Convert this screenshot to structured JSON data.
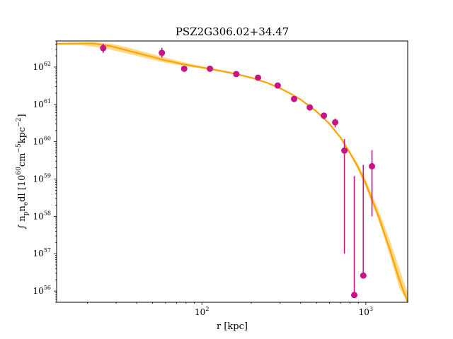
{
  "chart_data": {
    "type": "scatter",
    "title": "PSZ2G306.02+34.47",
    "xlabel": "r [kpc]",
    "ylabel": "∫ n_p n_e dl [10^60 cm^-5 kpc^-2]",
    "xscale": "log",
    "yscale": "log",
    "xlim": [
      13.0,
      1800.0
    ],
    "ylim": [
      5e+55,
      5e+62
    ],
    "grid": false,
    "legend": "none",
    "x_tick_labels": [
      {
        "base": "10",
        "exp": "2",
        "value": 100
      },
      {
        "base": "10",
        "exp": "3",
        "value": 1000
      }
    ],
    "y_tick_labels": [
      {
        "base": "10",
        "exp": "56",
        "value": 1e+56
      },
      {
        "base": "10",
        "exp": "57",
        "value": 1e+57
      },
      {
        "base": "10",
        "exp": "58",
        "value": 1e+58
      },
      {
        "base": "10",
        "exp": "59",
        "value": 1e+59
      },
      {
        "base": "10",
        "exp": "60",
        "value": 1e+60
      },
      {
        "base": "10",
        "exp": "61",
        "value": 1e+61
      },
      {
        "base": "10",
        "exp": "62",
        "value": 1e+62
      }
    ],
    "points": [
      {
        "x": 25,
        "y": 3.2e+62,
        "yerr_low": 8e+61,
        "yerr_high": 1e+62
      },
      {
        "x": 57,
        "y": 2.4e+62,
        "yerr_low": 6e+61,
        "yerr_high": 9e+61
      },
      {
        "x": 78,
        "y": 9e+61,
        "yerr_low": 1.5e+61,
        "yerr_high": 1.8e+61
      },
      {
        "x": 112,
        "y": 9e+61,
        "yerr_low": 1e+61,
        "yerr_high": 1e+61
      },
      {
        "x": 162,
        "y": 6.5e+61,
        "yerr_low": 8e+60,
        "yerr_high": 8e+60
      },
      {
        "x": 220,
        "y": 5.2e+61,
        "yerr_low": 6e+60,
        "yerr_high": 6e+60
      },
      {
        "x": 290,
        "y": 3.2e+61,
        "yerr_low": 4e+60,
        "yerr_high": 4e+60
      },
      {
        "x": 365,
        "y": 1.4e+61,
        "yerr_low": 2e+60,
        "yerr_high": 2e+60
      },
      {
        "x": 455,
        "y": 8.3e+60,
        "yerr_low": 1.5e+60,
        "yerr_high": 1.5e+60
      },
      {
        "x": 555,
        "y": 5e+60,
        "yerr_low": 1e+60,
        "yerr_high": 1e+60
      },
      {
        "x": 650,
        "y": 3.3e+60,
        "yerr_low": 9e+59,
        "yerr_high": 9e+59
      },
      {
        "x": 740,
        "y": 5.8e+59,
        "yerr_low": 5.79e+59,
        "yerr_high": 6e+59
      },
      {
        "x": 850,
        "y": 7.8e+55,
        "yerr_low": 0,
        "yerr_high": 1.2e+59
      },
      {
        "x": 965,
        "y": 2.6e+56,
        "yerr_low": 0,
        "yerr_high": 2.4e+59
      },
      {
        "x": 1090,
        "y": 2.2e+59,
        "yerr_low": 2.1e+59,
        "yerr_high": 3.8e+59
      }
    ],
    "model_median": [
      [
        13,
        4.2e+62
      ],
      [
        18,
        4.3e+62
      ],
      [
        22,
        4.3e+62
      ],
      [
        28,
        3.6e+62
      ],
      [
        35,
        2.8e+62
      ],
      [
        45,
        2.1e+62
      ],
      [
        60,
        1.5e+62
      ],
      [
        80,
        1.15e+62
      ],
      [
        100,
        9.7e+61
      ],
      [
        130,
        7.9e+61
      ],
      [
        160,
        6.6e+61
      ],
      [
        200,
        5.2e+61
      ],
      [
        250,
        3.8e+61
      ],
      [
        300,
        2.7e+61
      ],
      [
        350,
        1.9e+61
      ],
      [
        400,
        1.35e+61
      ],
      [
        500,
        6.5e+60
      ],
      [
        600,
        3e+60
      ],
      [
        700,
        1.3e+60
      ],
      [
        800,
        5e+59
      ],
      [
        900,
        2e+59
      ],
      [
        1000,
        7.5e+58
      ],
      [
        1200,
        9.5e+57
      ],
      [
        1400,
        1.3e+57
      ],
      [
        1600,
        2e+56
      ],
      [
        1800,
        4.5e+55
      ]
    ],
    "model_low": [
      [
        13,
        4e+62
      ],
      [
        18,
        3.9e+62
      ],
      [
        22,
        3.5e+62
      ],
      [
        28,
        2.9e+62
      ],
      [
        35,
        2.3e+62
      ],
      [
        45,
        1.75e+62
      ],
      [
        60,
        1.3e+62
      ],
      [
        80,
        1.05e+62
      ],
      [
        100,
        9.1e+61
      ],
      [
        130,
        7.5e+61
      ],
      [
        160,
        6.3e+61
      ],
      [
        200,
        5e+61
      ],
      [
        250,
        3.6e+61
      ],
      [
        300,
        2.55e+61
      ],
      [
        350,
        1.8e+61
      ],
      [
        400,
        1.28e+61
      ],
      [
        500,
        6.1e+60
      ],
      [
        600,
        2.8e+60
      ],
      [
        700,
        1.2e+60
      ],
      [
        800,
        4.5e+59
      ],
      [
        900,
        1.7e+59
      ],
      [
        1000,
        6e+58
      ],
      [
        1200,
        7.5e+57
      ],
      [
        1400,
        9e+56
      ],
      [
        1600,
        1.2e+56
      ],
      [
        1800,
        2.5e+55
      ]
    ],
    "model_high": [
      [
        13,
        4.4e+62
      ],
      [
        18,
        4.5e+62
      ],
      [
        22,
        4.6e+62
      ],
      [
        28,
        4.2e+62
      ],
      [
        35,
        3.4e+62
      ],
      [
        45,
        2.5e+62
      ],
      [
        60,
        1.8e+62
      ],
      [
        80,
        1.3e+62
      ],
      [
        100,
        1.05e+62
      ],
      [
        130,
        8.4e+61
      ],
      [
        160,
        7e+61
      ],
      [
        200,
        5.5e+61
      ],
      [
        250,
        4e+61
      ],
      [
        300,
        2.85e+61
      ],
      [
        350,
        2e+61
      ],
      [
        400,
        1.42e+61
      ],
      [
        500,
        6.9e+60
      ],
      [
        600,
        3.2e+60
      ],
      [
        700,
        1.4e+60
      ],
      [
        800,
        5.6e+59
      ],
      [
        900,
        2.4e+59
      ],
      [
        1000,
        9.5e+58
      ],
      [
        1200,
        1.4e+58
      ],
      [
        1400,
        2.3e+57
      ],
      [
        1600,
        4e+56
      ],
      [
        1800,
        9e+55
      ]
    ],
    "colors": {
      "points": "#c71585",
      "model_line": "#ffa500",
      "model_band": "#ffd27a"
    }
  }
}
